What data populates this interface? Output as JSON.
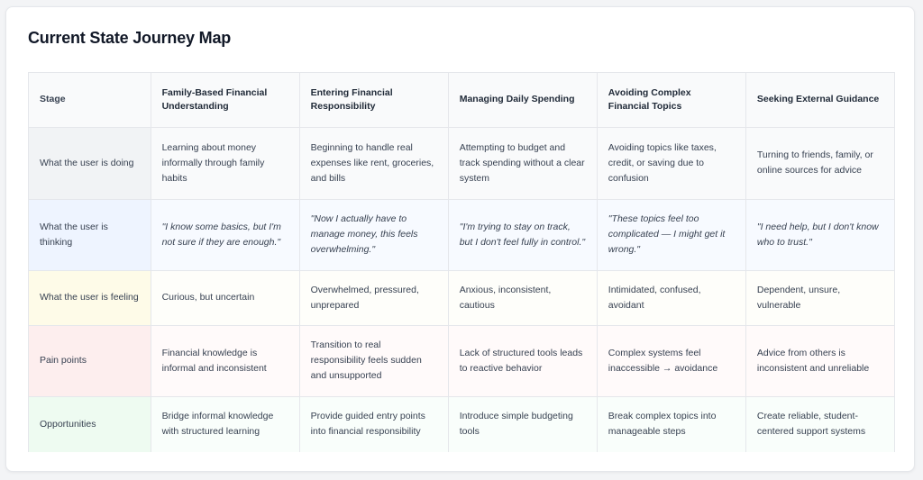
{
  "title": "Current State Journey Map",
  "header": {
    "stage_label": "Stage",
    "stages": [
      "Family-Based Financial Understanding",
      "Entering Financial Responsibility",
      "Managing Daily Spending",
      "Avoiding Complex Financial Topics",
      "Seeking External Guidance"
    ]
  },
  "rows": [
    {
      "label": "What the user is doing",
      "cells": [
        "Learning about money informally through family habits",
        "Beginning to handle real expenses like rent, groceries, and bills",
        "Attempting to budget and track spending without a clear system",
        "Avoiding topics like taxes, credit, or saving due to confusion",
        "Turning to friends, family, or online sources for advice"
      ]
    },
    {
      "label": "What the user is thinking",
      "cells": [
        "\"I know some basics, but I'm not sure if they are enough.\"",
        "\"Now I actually have to manage money, this feels overwhelming.\"",
        "\"I'm trying to stay on track, but I don't feel fully in control.\"",
        "\"These topics feel too complicated — I might get it wrong.\"",
        "\"I need help, but I don't know who to trust.\""
      ]
    },
    {
      "label": "What the user is feeling",
      "cells": [
        "Curious, but uncertain",
        "Overwhelmed, pressured, unprepared",
        "Anxious, inconsistent, cautious",
        "Intimidated, confused, avoidant",
        "Dependent, unsure, vulnerable"
      ]
    },
    {
      "label": "Pain points",
      "cells": [
        "Financial knowledge is informal and inconsistent",
        "Transition to real responsibility feels sudden and unsupported",
        "Lack of structured tools leads to reactive behavior",
        "Complex systems feel inaccessible → avoidance",
        "Advice from others is inconsistent and unreliable"
      ]
    },
    {
      "label": "Opportunities",
      "cells": [
        "Bridge informal knowledge with structured learning",
        "Provide guided entry points into financial responsibility",
        "Introduce simple budgeting tools",
        "Break complex topics into manageable steps",
        "Create reliable, student-centered support systems"
      ]
    }
  ]
}
